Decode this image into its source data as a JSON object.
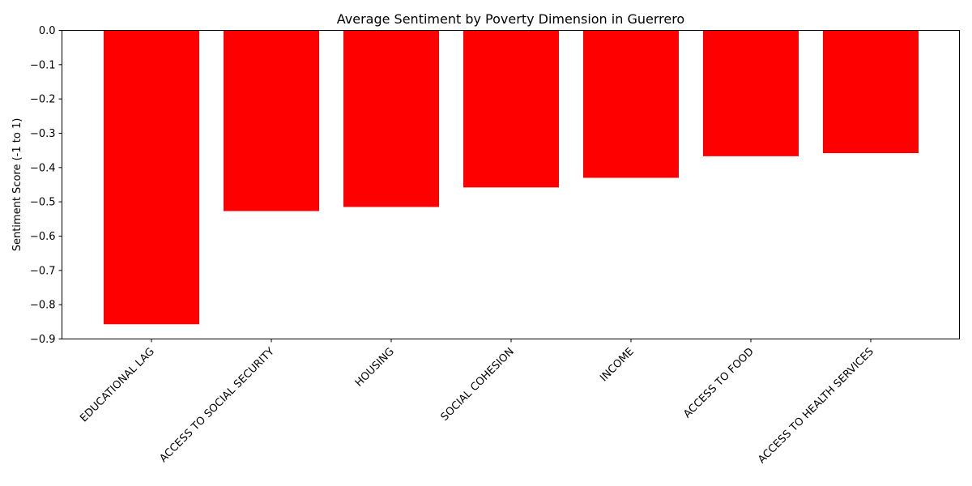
{
  "chart_data": {
    "type": "bar",
    "title": "Average Sentiment by Poverty Dimension in Guerrero",
    "xlabel": "",
    "ylabel": "Sentiment Score (-1 to 1)",
    "ylim": [
      -0.9,
      0.0
    ],
    "yticks": [
      0.0,
      -0.1,
      -0.2,
      -0.3,
      -0.4,
      -0.5,
      -0.6,
      -0.7,
      -0.8,
      -0.9
    ],
    "ytick_labels": [
      "0.0",
      "−0.1",
      "−0.2",
      "−0.3",
      "−0.4",
      "−0.5",
      "−0.6",
      "−0.7",
      "−0.8",
      "−0.9"
    ],
    "categories": [
      "EDUCATIONAL LAG",
      "ACCESS TO SOCIAL SECURITY",
      "HOUSING",
      "SOCIAL COHESION",
      "INCOME",
      "ACCESS TO FOOD",
      "ACCESS TO HEALTH SERVICES"
    ],
    "values": [
      -0.857,
      -0.527,
      -0.515,
      -0.458,
      -0.43,
      -0.367,
      -0.358
    ],
    "bar_color": "#ff0000",
    "grid": false,
    "legend": "none"
  }
}
